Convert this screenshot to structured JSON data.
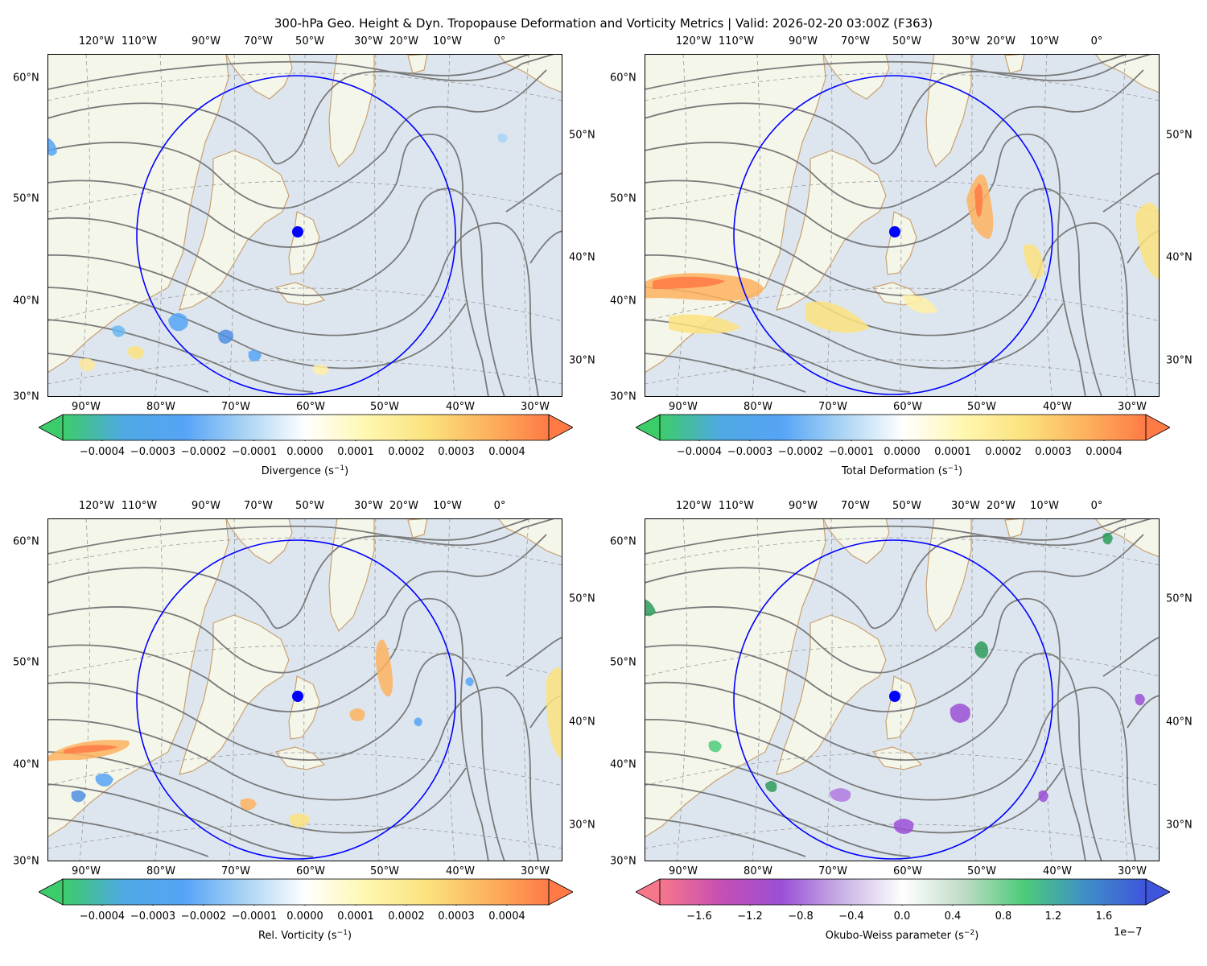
{
  "title": "300-hPa Geo. Height & Dyn. Tropopause Deformation and Vorticity Metrics |  Valid: 2026-02-20 03:00Z (F363)",
  "axes": {
    "top_lon_labels": [
      "120°W",
      "110°W",
      "90°W",
      "70°W",
      "50°W",
      "30°W",
      "20°W",
      "10°W",
      "0°"
    ],
    "bottom_lon_labels": [
      "90°W",
      "80°W",
      "70°W",
      "60°W",
      "50°W",
      "40°W",
      "30°W"
    ],
    "left_lat_labels": [
      "60°N",
      "50°N",
      "40°N",
      "30°N"
    ],
    "right_lat_labels": [
      "50°N",
      "40°N",
      "30°N"
    ]
  },
  "colors": {
    "ocean": "#dde6ef",
    "land": "#f4f6ea",
    "coast": "#c8a070",
    "height_contour": "#7a7a7a",
    "grid": "#9a9a9a",
    "ring": "#0000ff",
    "center_marker": "#0000ff"
  },
  "panels": [
    {
      "id": "divergence",
      "label_main": "Divergence (s",
      "label_exp": "−1",
      "label_end": ")",
      "cmap": [
        "#3dcc6a",
        "#4fa9e3",
        "#56a4f6",
        "#aad4f4",
        "#ffffff",
        "#fff7b0",
        "#fbe27e",
        "#fdb25e",
        "#ff7a45"
      ],
      "ticks": [
        "−0.0004",
        "−0.0003",
        "−0.0002",
        "−0.0001",
        "0.0000",
        "0.0001",
        "0.0002",
        "0.0003",
        "0.0004"
      ],
      "offset_text": ""
    },
    {
      "id": "total-deformation",
      "label_main": "Total Deformation (s",
      "label_exp": "−1",
      "label_end": ")",
      "cmap": [
        "#3dcc6a",
        "#4fa9e3",
        "#56a4f6",
        "#aad4f4",
        "#ffffff",
        "#fff7b0",
        "#fbe27e",
        "#fdb25e",
        "#ff7a45"
      ],
      "ticks": [
        "−0.0004",
        "−0.0003",
        "−0.0002",
        "−0.0001",
        "0.0000",
        "0.0001",
        "0.0002",
        "0.0003",
        "0.0004"
      ],
      "offset_text": ""
    },
    {
      "id": "rel-vorticity",
      "label_main": "Rel. Vorticity (s",
      "label_exp": "−1",
      "label_end": ")",
      "cmap": [
        "#3dcc6a",
        "#4fa9e3",
        "#56a4f6",
        "#aad4f4",
        "#ffffff",
        "#fff7b0",
        "#fbe27e",
        "#fdb25e",
        "#ff7a45"
      ],
      "ticks": [
        "−0.0004",
        "−0.0003",
        "−0.0002",
        "−0.0001",
        "0.0000",
        "0.0001",
        "0.0002",
        "0.0003",
        "0.0004"
      ],
      "offset_text": ""
    },
    {
      "id": "okubo-weiss",
      "label_main": "Okubo-Weiss parameter (s",
      "label_exp": "−2",
      "label_end": ")",
      "cmap": [
        "#f7778a",
        "#c64fb4",
        "#9b4fd6",
        "#c9b2e6",
        "#ffffff",
        "#bfdcc6",
        "#4ccb79",
        "#3f8fc6",
        "#3f55dc"
      ],
      "ticks": [
        "−1.6",
        "−1.2",
        "−0.8",
        "−0.4",
        "0.0",
        "0.4",
        "0.8",
        "1.2",
        "1.6"
      ],
      "offset_text": "1e−7"
    }
  ]
}
